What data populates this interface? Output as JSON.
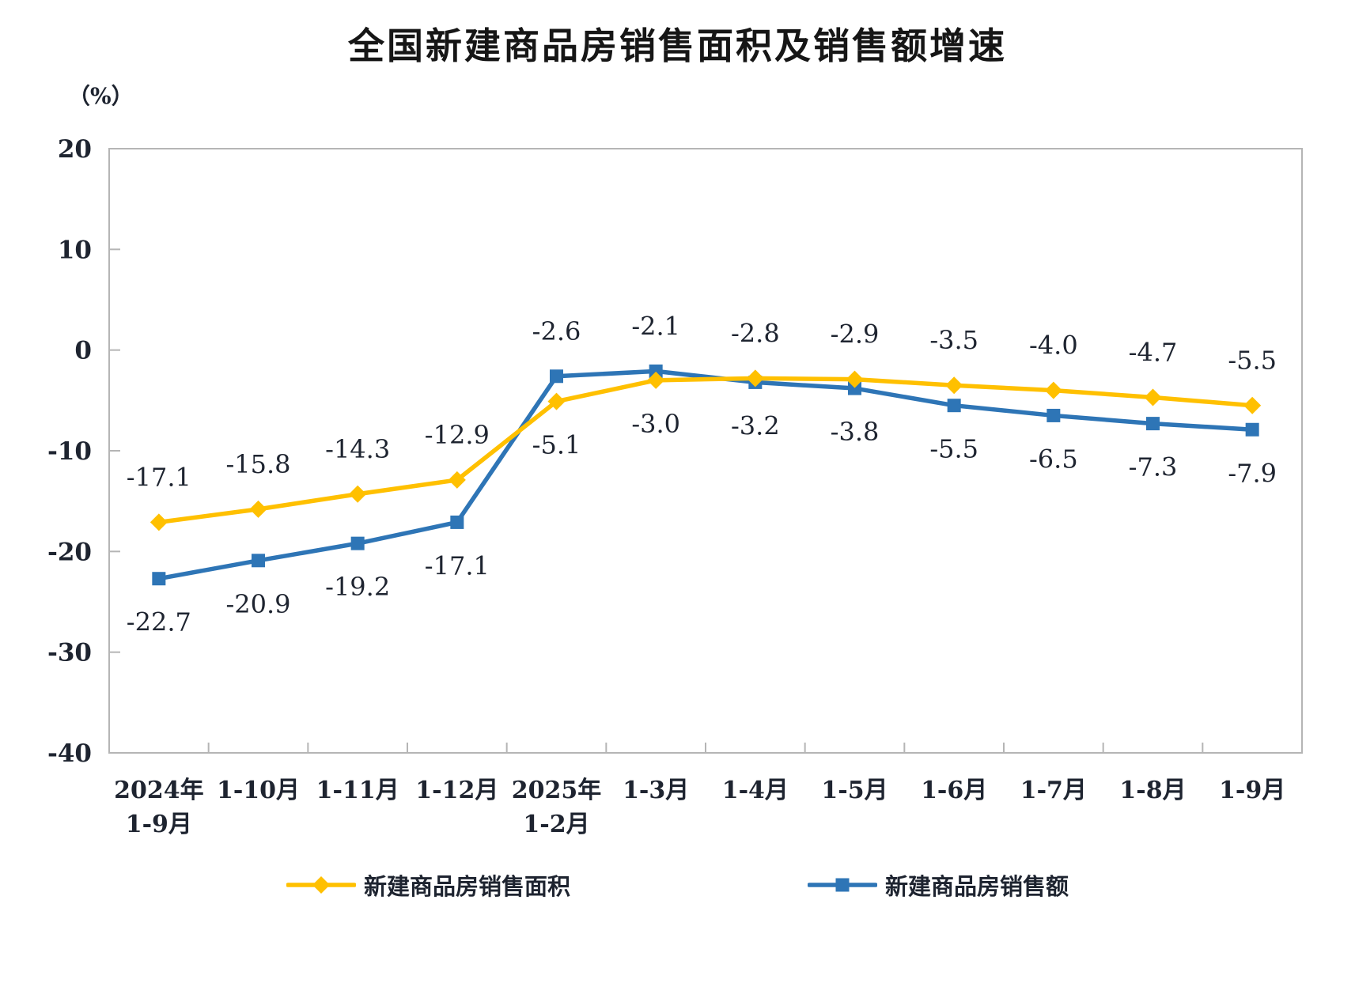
{
  "chart_data": {
    "type": "line",
    "title": "全国新建商品房销售面积及销售额增速",
    "unit_label": "（%）",
    "categories": [
      "2024年\n1-9月",
      "1-10月",
      "1-11月",
      "1-12月",
      "2025年\n1-2月",
      "1-3月",
      "1-4月",
      "1-5月",
      "1-6月",
      "1-7月",
      "1-8月",
      "1-9月"
    ],
    "y_axis": {
      "min": -40,
      "max": 20,
      "step": 10,
      "tick_labels": [
        "20",
        "10",
        "0",
        "-10",
        "-20",
        "-30",
        "-40"
      ]
    },
    "series": [
      {
        "name": "新建商品房销售面积",
        "color": "#FFC000",
        "marker": "diamond",
        "values": [
          -17.1,
          -15.8,
          -14.3,
          -12.9,
          -5.1,
          -3.0,
          -2.8,
          -2.9,
          -3.5,
          -4.0,
          -4.7,
          -5.5
        ]
      },
      {
        "name": "新建商品房销售额",
        "color": "#2E75B6",
        "marker": "square",
        "values": [
          -22.7,
          -20.9,
          -19.2,
          -17.1,
          -2.6,
          -2.1,
          -3.2,
          -3.8,
          -5.5,
          -6.5,
          -7.3,
          -7.9
        ]
      }
    ],
    "data_labels": true,
    "grid": false,
    "legend_position": "bottom",
    "axis_color": "#B5B5B5",
    "text_color": "#1E2430"
  }
}
